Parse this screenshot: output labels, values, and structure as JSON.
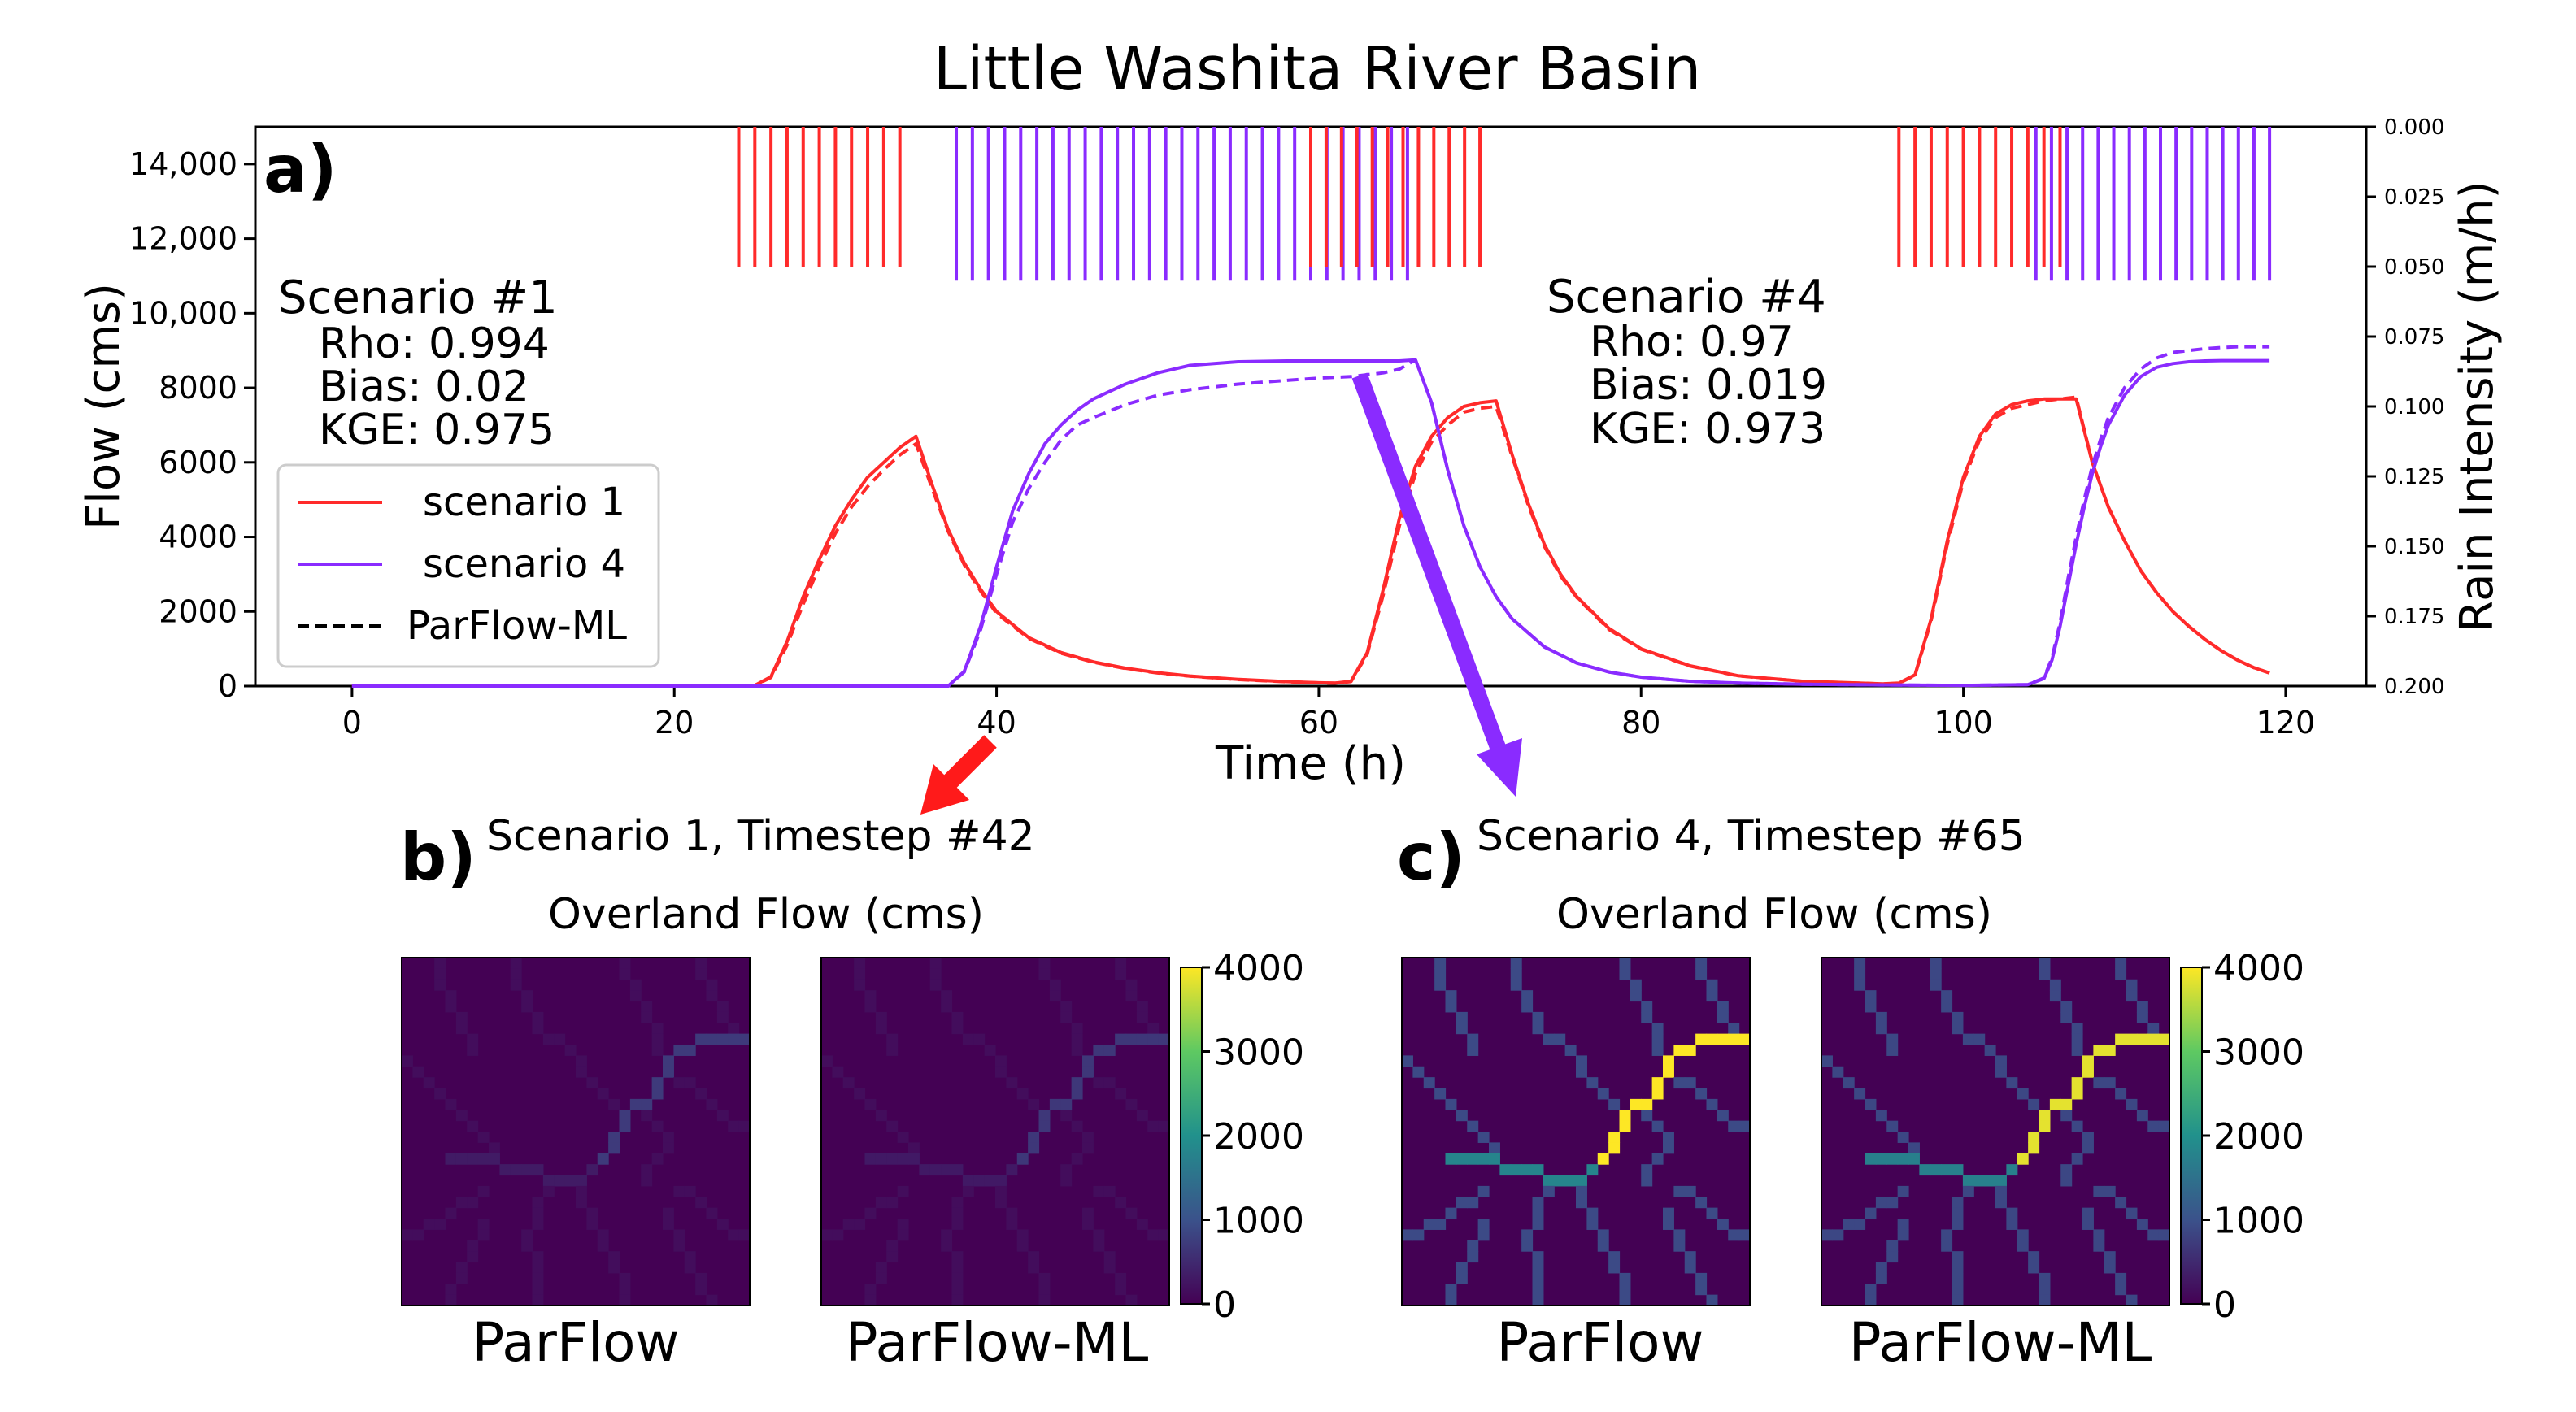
{
  "figure": {
    "title": "Little Washita River Basin",
    "panel_a_label": "a)",
    "panel_b_label": "b)",
    "panel_c_label": "c)"
  },
  "colors": {
    "scenario1": "#ff2a2a",
    "scenario4": "#8a2bff",
    "arrow_red": "#ff1a1a",
    "arrow_purple": "#8a2bff"
  },
  "stats": {
    "s1": {
      "title": "Scenario #1",
      "rho": "Rho: 0.994",
      "bias": "Bias: 0.02",
      "kge": "KGE: 0.975"
    },
    "s4": {
      "title": "Scenario #4",
      "rho": "Rho: 0.97",
      "bias": "Bias: 0.019",
      "kge": "KGE: 0.973"
    }
  },
  "chart_data": [
    {
      "type": "line",
      "title": "Little Washita River Basin",
      "xlabel": "Time (h)",
      "ylabel": "Flow (cms)",
      "y2label": "Rain Intensity (m/h)",
      "xlim": [
        -6,
        125
      ],
      "ylim": [
        0,
        15000
      ],
      "y2lim": [
        0.2,
        0.0
      ],
      "x_ticks": [
        "0",
        "20",
        "40",
        "60",
        "80",
        "100",
        "120"
      ],
      "x_tick_values": [
        0,
        20,
        40,
        60,
        80,
        100,
        120
      ],
      "y_ticks": [
        "0",
        "2000",
        "4000",
        "6000",
        "8000",
        "10,000",
        "12,000",
        "14,000"
      ],
      "y_tick_values": [
        0,
        2000,
        4000,
        6000,
        8000,
        10000,
        12000,
        14000
      ],
      "y2_ticks": [
        "0.000",
        "0.025",
        "0.050",
        "0.075",
        "0.100",
        "0.125",
        "0.150",
        "0.175",
        "0.200"
      ],
      "y2_tick_values": [
        0.0,
        0.025,
        0.05,
        0.075,
        0.1,
        0.125,
        0.15,
        0.175,
        0.2
      ],
      "legend": {
        "position": "center-left",
        "entries": [
          {
            "label": "scenario 1",
            "style": "solid",
            "color": "#ff2a2a"
          },
          {
            "label": "scenario 4",
            "style": "solid",
            "color": "#8a2bff"
          },
          {
            "label": "ParFlow-ML",
            "style": "dashed",
            "color": "#000000"
          }
        ]
      },
      "series": [
        {
          "name": "scenario 1",
          "style": "solid",
          "color": "#ff2a2a",
          "x": [
            0,
            24,
            25,
            26,
            27,
            28,
            29,
            30,
            31,
            32,
            33,
            34,
            35,
            36,
            37,
            38,
            39,
            40,
            42,
            44,
            46,
            48,
            50,
            52,
            55,
            58,
            60,
            61,
            62,
            63,
            64,
            65,
            66,
            67,
            68,
            69,
            70,
            71,
            72,
            73,
            74,
            75,
            76,
            78,
            80,
            83,
            86,
            90,
            95,
            96,
            97,
            98,
            99,
            100,
            101,
            102,
            103,
            104,
            105,
            106,
            107,
            108,
            109,
            110,
            111,
            112,
            113,
            114,
            115,
            116,
            117,
            118,
            119
          ],
          "y": [
            0,
            0,
            20,
            250,
            1200,
            2400,
            3400,
            4300,
            5000,
            5600,
            6000,
            6400,
            6700,
            5400,
            4200,
            3300,
            2600,
            2000,
            1300,
            900,
            650,
            480,
            360,
            270,
            180,
            120,
            90,
            80,
            130,
            900,
            2600,
            4500,
            5900,
            6700,
            7200,
            7500,
            7600,
            7650,
            6200,
            4900,
            3800,
            3000,
            2400,
            1550,
            1000,
            550,
            280,
            130,
            60,
            80,
            300,
            1800,
            3900,
            5600,
            6700,
            7300,
            7550,
            7650,
            7700,
            7700,
            7700,
            6000,
            4800,
            3900,
            3100,
            2500,
            2000,
            1600,
            1250,
            950,
            700,
            500,
            350
          ]
        },
        {
          "name": "scenario 1 (ParFlow-ML)",
          "style": "dashed",
          "color": "#ff2a2a",
          "x": [
            0,
            24,
            25,
            26,
            27,
            28,
            29,
            30,
            31,
            32,
            33,
            34,
            35,
            36,
            37,
            38,
            39,
            40,
            42,
            44,
            46,
            48,
            50,
            52,
            55,
            58,
            60,
            61,
            62,
            63,
            64,
            65,
            66,
            67,
            68,
            69,
            70,
            71,
            72,
            73,
            74,
            75,
            76,
            78,
            80,
            83,
            86,
            90,
            95,
            96,
            97,
            98,
            99,
            100,
            101,
            102,
            103,
            104,
            105,
            106,
            107,
            108,
            109,
            110,
            111,
            112,
            113,
            114,
            115,
            116,
            117,
            118,
            119
          ],
          "y": [
            0,
            0,
            20,
            230,
            1100,
            2200,
            3200,
            4100,
            4800,
            5350,
            5800,
            6200,
            6500,
            5300,
            4150,
            3250,
            2550,
            1950,
            1280,
            880,
            640,
            470,
            350,
            265,
            175,
            115,
            88,
            78,
            120,
            850,
            2450,
            4300,
            5700,
            6550,
            7000,
            7350,
            7450,
            7500,
            6150,
            4850,
            3750,
            2950,
            2380,
            1520,
            990,
            540,
            275,
            128,
            58,
            75,
            290,
            1750,
            3800,
            5500,
            6600,
            7200,
            7450,
            7550,
            7650,
            7700,
            7750,
            6000,
            4800,
            3900,
            3100,
            2500,
            2000,
            1600,
            1250,
            950,
            700,
            500,
            350
          ]
        },
        {
          "name": "scenario 4",
          "style": "solid",
          "color": "#8a2bff",
          "x": [
            0,
            37,
            38,
            39,
            40,
            41,
            42,
            43,
            44,
            45,
            46,
            48,
            50,
            52,
            55,
            58,
            60,
            62,
            64,
            65,
            66,
            67,
            68,
            69,
            70,
            71,
            72,
            74,
            76,
            78,
            80,
            83,
            86,
            90,
            95,
            100,
            104,
            105,
            105.5,
            106,
            106.5,
            107,
            107.5,
            108,
            108.5,
            109,
            110,
            111,
            112,
            113,
            114,
            115,
            116,
            117,
            118,
            119
          ],
          "y": [
            0,
            0,
            400,
            1600,
            3200,
            4700,
            5700,
            6500,
            7000,
            7400,
            7700,
            8100,
            8400,
            8600,
            8700,
            8720,
            8720,
            8720,
            8720,
            8720,
            8750,
            7600,
            5800,
            4300,
            3200,
            2400,
            1800,
            1050,
            620,
            380,
            240,
            130,
            80,
            50,
            30,
            20,
            40,
            200,
            700,
            1600,
            2700,
            3800,
            4800,
            5700,
            6400,
            7000,
            7800,
            8300,
            8550,
            8650,
            8700,
            8720,
            8730,
            8730,
            8730,
            8730
          ]
        },
        {
          "name": "scenario 4 (ParFlow-ML)",
          "style": "dashed",
          "color": "#8a2bff",
          "x": [
            0,
            37,
            38,
            39,
            40,
            41,
            42,
            43,
            44,
            45,
            46,
            48,
            50,
            52,
            55,
            58,
            60,
            62,
            64,
            65,
            66,
            67,
            68,
            69,
            70,
            71,
            72,
            74,
            76,
            78,
            80,
            83,
            86,
            90,
            95,
            100,
            104,
            105,
            105.5,
            106,
            106.5,
            107,
            107.5,
            108,
            108.5,
            109,
            110,
            111,
            112,
            113,
            114,
            115,
            116,
            117,
            118,
            119
          ],
          "y": [
            0,
            0,
            380,
            1500,
            3000,
            4400,
            5300,
            6000,
            6600,
            7000,
            7200,
            7550,
            7800,
            7950,
            8100,
            8200,
            8260,
            8300,
            8400,
            8500,
            8750,
            7600,
            5800,
            4300,
            3200,
            2400,
            1800,
            1050,
            620,
            380,
            240,
            130,
            80,
            50,
            30,
            20,
            40,
            220,
            760,
            1700,
            2900,
            4000,
            5000,
            5900,
            6600,
            7200,
            8000,
            8500,
            8800,
            8950,
            9000,
            9050,
            9080,
            9100,
            9100,
            9100
          ]
        }
      ],
      "rain_events": [
        {
          "scenario": "scenario 1",
          "color": "#ff2a2a",
          "start": 24,
          "end": 34,
          "count": 10,
          "intensity": 0.05
        },
        {
          "scenario": "scenario 4",
          "color": "#8a2bff",
          "start": 37.5,
          "end": 65.5,
          "count": 28,
          "intensity": 0.055
        },
        {
          "scenario": "scenario 1",
          "color": "#ff2a2a",
          "start": 59.5,
          "end": 70,
          "count": 11,
          "intensity": 0.05
        },
        {
          "scenario": "scenario 1",
          "color": "#ff2a2a",
          "start": 96,
          "end": 106,
          "count": 10,
          "intensity": 0.05
        },
        {
          "scenario": "scenario 4",
          "color": "#8a2bff",
          "start": 104.5,
          "end": 119,
          "count": 15,
          "intensity": 0.055
        }
      ]
    },
    {
      "type": "heatmap",
      "panel": "b)",
      "heading": "Scenario 1, Timestep #42",
      "title": "Overland Flow (cms)",
      "subplots": [
        "ParFlow",
        "ParFlow-ML"
      ],
      "colorbar_ticks": [
        "0",
        "1000",
        "2000",
        "3000",
        "4000"
      ],
      "colorbar_values": [
        0,
        1000,
        2000,
        3000,
        4000
      ],
      "vmin": 0,
      "vmax": 4000,
      "colormap": "viridis",
      "main_channel_value": 700,
      "tributary_value": 150
    },
    {
      "type": "heatmap",
      "panel": "c)",
      "heading": "Scenario 4, Timestep #65",
      "title": "Overland Flow (cms)",
      "subplots": [
        "ParFlow",
        "ParFlow-ML"
      ],
      "colorbar_ticks": [
        "0",
        "1000",
        "2000",
        "3000",
        "4000"
      ],
      "colorbar_values": [
        0,
        1000,
        2000,
        3000,
        4000
      ],
      "vmin": 0,
      "vmax": 4000,
      "colormap": "viridis",
      "main_channel_value": 4000,
      "tributary_value": 900
    }
  ]
}
